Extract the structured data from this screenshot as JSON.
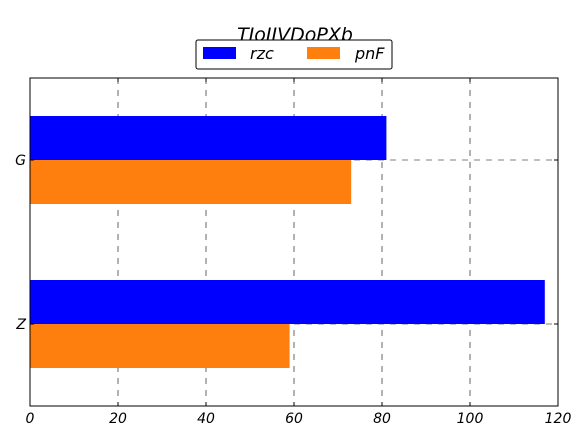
{
  "chart_data": {
    "type": "bar",
    "orientation": "horizontal",
    "title": "TJoJJVDoPXb",
    "categories": [
      "G",
      "Z"
    ],
    "series": [
      {
        "name": "rzc",
        "values": [
          81,
          117
        ],
        "color": "#0000ff"
      },
      {
        "name": "pnF",
        "values": [
          73,
          59
        ],
        "color": "#ff7f0e"
      }
    ],
    "xlim": [
      0,
      120
    ],
    "x_ticks": [
      "0",
      "20",
      "40",
      "60",
      "80",
      "100",
      "120"
    ],
    "xlabel": "",
    "ylabel": "",
    "grid": true,
    "legend_position": "top-center"
  }
}
